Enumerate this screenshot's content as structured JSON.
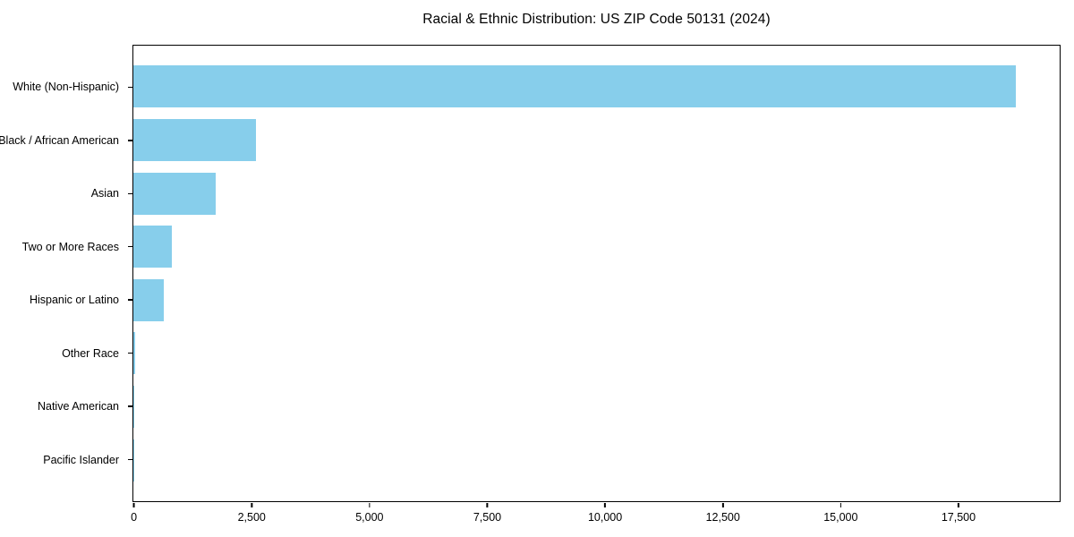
{
  "chart_data": {
    "type": "bar",
    "orientation": "horizontal",
    "title": "Racial & Ethnic Distribution: US ZIP Code 50131 (2024)",
    "categories": [
      "White (Non-Hispanic)",
      "Black / African American",
      "Asian",
      "Two or More Races",
      "Hispanic or Latino",
      "Other Race",
      "Native American",
      "Pacific Islander"
    ],
    "values": [
      18700,
      2600,
      1750,
      820,
      640,
      35,
      20,
      10
    ],
    "xlabel": "",
    "ylabel": "",
    "xlim": [
      0,
      19635
    ],
    "x_ticks": [
      0,
      2500,
      5000,
      7500,
      10000,
      12500,
      15000,
      17500
    ],
    "x_tick_labels": [
      "0",
      "2,500",
      "5,000",
      "7,500",
      "10,000",
      "12,500",
      "15,000",
      "17,500"
    ],
    "bar_color": "#87CEEB",
    "grid": false,
    "legend": null
  }
}
